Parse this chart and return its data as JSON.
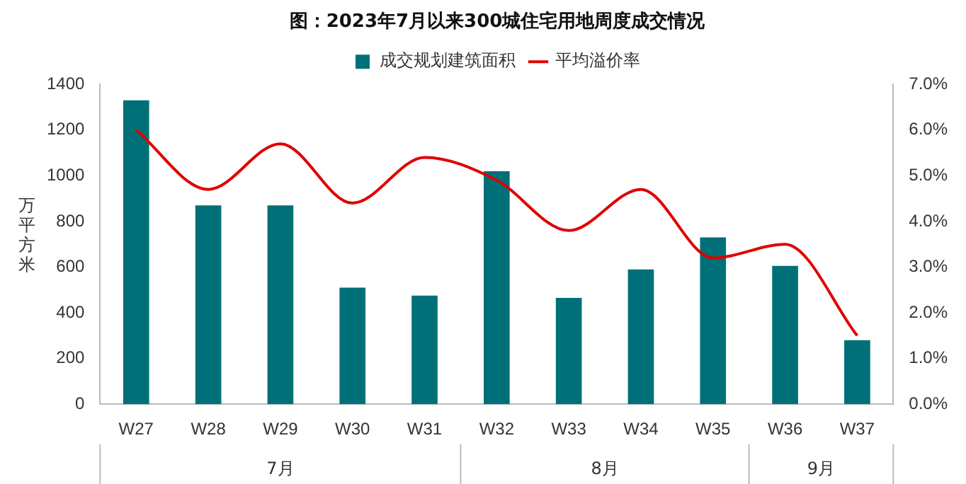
{
  "chart_data": {
    "type": "bar",
    "title": "图：2023年7月以来300城住宅用地周度成交情况",
    "ylabel": "万平方米",
    "categories": [
      "W27",
      "W28",
      "W29",
      "W30",
      "W31",
      "W32",
      "W33",
      "W34",
      "W35",
      "W36",
      "W37"
    ],
    "series": [
      {
        "name": "成交规划建筑面积",
        "color": "#007078",
        "values": [
          1330,
          870,
          870,
          510,
          475,
          1020,
          465,
          590,
          730,
          605,
          280
        ]
      },
      {
        "name": "平均溢价率",
        "type": "line",
        "axis": "y2",
        "color": "#e00000",
        "marker": "none",
        "line_style": "solid",
        "values": [
          6.0,
          4.7,
          5.7,
          4.4,
          5.4,
          4.9,
          3.8,
          4.7,
          3.2,
          3.5,
          1.5
        ]
      }
    ],
    "ylim": [
      0,
      1400
    ],
    "yticks": [
      0,
      200,
      400,
      600,
      800,
      1000,
      1200,
      1400
    ],
    "y2lim": [
      0,
      7
    ],
    "y2ticks": [
      {
        "value": 0,
        "label": "0.0%"
      },
      {
        "value": 1,
        "label": "1.0%"
      },
      {
        "value": 2,
        "label": "2.0%"
      },
      {
        "value": 3,
        "label": "3.0%"
      },
      {
        "value": 4,
        "label": "4.0%"
      },
      {
        "value": 5,
        "label": "5.0%"
      },
      {
        "value": 6,
        "label": "6.0%"
      },
      {
        "value": 7,
        "label": "7.0%"
      }
    ],
    "annotations": [
      "7月",
      "8月",
      "9月"
    ],
    "grid": false,
    "legend": "top"
  }
}
